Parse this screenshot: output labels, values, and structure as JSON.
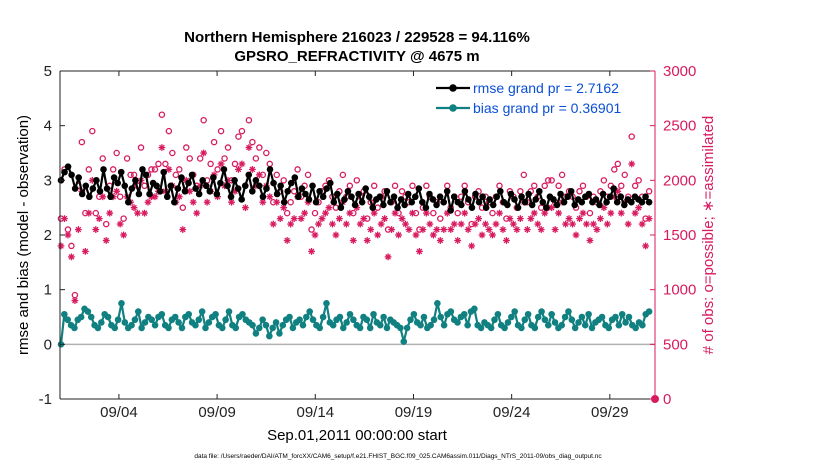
{
  "chart_data": {
    "type": "line",
    "title_line1": "Northern Hemisphere 216023 / 229528 = 94.116%",
    "title_line2": "GPSRO_REFRACTIVITY @ 4675 m",
    "xlabel": "Sep.01,2011 00:00:00 start",
    "ylabel_left": "rmse and bias (model - observation)",
    "ylabel_right": "# of obs: o=possible; ∗=assimilated",
    "footer": "data file: /Users/raeder/DAI/ATM_forcXX/CAM6_setup/f.e21.FHIST_BGC.f09_025.CAM6assim.011/Diags_NTrS_2011-09/obs_diag_output.nc",
    "xlim": [
      0.5,
      30.8
    ],
    "ylim_left": [
      -1,
      5
    ],
    "ylim_right": [
      0,
      3000
    ],
    "x_ticks": [
      3.5,
      8.5,
      13.5,
      18.5,
      23.5,
      28.5
    ],
    "x_tick_labels": [
      "09/04",
      "09/09",
      "09/14",
      "09/19",
      "09/24",
      "09/29"
    ],
    "y_left_ticks": [
      -1,
      0,
      1,
      2,
      3,
      4,
      5
    ],
    "y_right_ticks": [
      0,
      500,
      1000,
      1500,
      2000,
      2500,
      3000
    ],
    "legend": [
      {
        "label": "rmse grand pr = 2.7162",
        "color": "#000000"
      },
      {
        "label": "bias grand pr = 0.36901",
        "color": "#108080"
      }
    ],
    "colors": {
      "rmse": "#000000",
      "bias": "#108080",
      "obs": "#d81b60",
      "zero_line": "#b0b0b0"
    },
    "series": [
      {
        "name": "rmse",
        "axis": "left",
        "color": "#000000",
        "values": [
          3.0,
          3.15,
          3.25,
          3.1,
          2.85,
          3.05,
          2.75,
          2.9,
          2.7,
          2.85,
          3.0,
          2.8,
          3.2,
          2.85,
          2.7,
          3.05,
          2.95,
          3.15,
          2.9,
          2.6,
          2.85,
          3.0,
          2.75,
          3.2,
          3.1,
          2.75,
          2.95,
          2.9,
          2.8,
          3.15,
          2.7,
          2.9,
          2.6,
          2.85,
          3.05,
          2.8,
          2.95,
          3.1,
          2.85,
          2.75,
          3.0,
          2.9,
          2.8,
          3.05,
          2.75,
          2.95,
          3.2,
          2.9,
          2.7,
          3.0,
          2.85,
          2.65,
          2.9,
          3.1,
          2.8,
          3.0,
          2.9,
          2.7,
          2.85,
          3.2,
          2.95,
          2.75,
          2.9,
          2.6,
          2.8,
          2.95,
          3.05,
          2.7,
          2.85,
          2.75,
          2.65,
          2.9,
          2.6,
          2.8,
          2.7,
          2.85,
          2.95,
          2.6,
          2.75,
          2.5,
          2.65,
          2.8,
          2.7,
          2.55,
          2.75,
          2.6,
          2.85,
          2.7,
          2.5,
          2.65,
          2.7,
          2.55,
          2.8,
          2.6,
          2.7,
          2.5,
          2.65,
          2.55,
          2.75,
          2.6,
          2.7,
          2.85,
          2.6,
          2.5,
          2.75,
          2.65,
          2.55,
          2.7,
          2.6,
          2.8,
          2.45,
          2.7,
          2.6,
          2.55,
          2.8,
          2.65,
          2.5,
          2.75,
          2.6,
          2.7,
          2.5,
          2.65,
          2.55,
          2.7,
          2.8,
          2.6,
          2.55,
          2.75,
          2.65,
          2.5,
          2.7,
          2.6,
          2.75,
          2.55,
          2.65,
          2.8,
          2.6,
          2.5,
          2.7,
          2.65,
          2.55,
          2.75,
          2.6,
          2.7,
          2.8,
          2.55,
          2.65,
          2.6,
          2.7,
          2.75,
          2.6,
          2.65,
          2.55,
          2.75,
          2.6,
          2.7,
          2.85,
          2.6,
          2.7,
          2.55,
          2.65,
          2.6,
          2.7,
          2.65,
          2.6,
          2.7,
          2.6
        ]
      },
      {
        "name": "bias",
        "axis": "left",
        "color": "#108080",
        "values": [
          0.0,
          0.55,
          0.45,
          0.35,
          0.3,
          0.45,
          0.5,
          0.65,
          0.6,
          0.5,
          0.35,
          0.3,
          0.4,
          0.55,
          0.5,
          0.35,
          0.3,
          0.45,
          0.75,
          0.4,
          0.3,
          0.35,
          0.45,
          0.6,
          0.3,
          0.4,
          0.5,
          0.45,
          0.35,
          0.5,
          0.55,
          0.35,
          0.3,
          0.45,
          0.5,
          0.4,
          0.3,
          0.5,
          0.55,
          0.4,
          0.35,
          0.45,
          0.6,
          0.3,
          0.4,
          0.5,
          0.55,
          0.35,
          0.3,
          0.45,
          0.6,
          0.35,
          0.3,
          0.5,
          0.55,
          0.45,
          0.4,
          0.35,
          0.2,
          0.3,
          0.45,
          0.35,
          0.15,
          0.3,
          0.4,
          0.2,
          0.35,
          0.45,
          0.5,
          0.3,
          0.4,
          0.45,
          0.35,
          0.5,
          0.6,
          0.45,
          0.35,
          0.3,
          0.5,
          0.75,
          0.4,
          0.35,
          0.45,
          0.5,
          0.3,
          0.4,
          0.55,
          0.45,
          0.35,
          0.3,
          0.5,
          0.45,
          0.3,
          0.55,
          0.4,
          0.35,
          0.5,
          0.3,
          0.45,
          0.4,
          0.35,
          0.3,
          0.05,
          0.3,
          0.45,
          0.55,
          0.4,
          0.35,
          0.5,
          0.3,
          0.35,
          0.45,
          0.75,
          0.5,
          0.35,
          0.55,
          0.6,
          0.45,
          0.4,
          0.5,
          0.55,
          0.35,
          0.6,
          0.65,
          0.35,
          0.3,
          0.4,
          0.35,
          0.3,
          0.45,
          0.55,
          0.35,
          0.3,
          0.4,
          0.5,
          0.6,
          0.35,
          0.3,
          0.45,
          0.55,
          0.35,
          0.3,
          0.5,
          0.6,
          0.45,
          0.35,
          0.55,
          0.4,
          0.3,
          0.35,
          0.5,
          0.6,
          0.45,
          0.3,
          0.4,
          0.5,
          0.35,
          0.55,
          0.3,
          0.4,
          0.45,
          0.5,
          0.35,
          0.3,
          0.45,
          0.5,
          0.35,
          0.55,
          0.4,
          0.5,
          0.35,
          0.3,
          0.4,
          0.35,
          0.55,
          0.6
        ]
      },
      {
        "name": "possible",
        "axis": "right",
        "color": "#d81b60",
        "marker": "circle",
        "values": [
          1650,
          2100,
          1550,
          1400,
          950,
          1950,
          2350,
          1700,
          2100,
          2450,
          1700,
          1850,
          2200,
          1600,
          1950,
          2100,
          2250,
          1850,
          1650,
          2200,
          2050,
          2050,
          1950,
          2300,
          1950,
          2050,
          2100,
          2100,
          2150,
          2600,
          2150,
          2450,
          2250,
          2050,
          2100,
          1750,
          2300,
          2200,
          2050,
          1950,
          2200,
          2550,
          2000,
          2150,
          2350,
          2100,
          2450,
          2200,
          2300,
          2000,
          2150,
          2400,
          2450,
          1950,
          2550,
          2350,
          2200,
          2300,
          2050,
          2250,
          2150,
          1800,
          2050,
          1900,
          2000,
          1700,
          1800,
          1900,
          2100,
          1850,
          1950,
          2050,
          1550,
          1700,
          1800,
          1900,
          1950,
          2000,
          1850,
          1750,
          1900,
          2050,
          1850,
          1950,
          1700,
          2000,
          1850,
          1900,
          1650,
          1800,
          1950,
          1750,
          1850,
          1900,
          1550,
          1800,
          1950,
          1700,
          1900,
          1850,
          1800,
          1950,
          1700,
          1550,
          1750,
          1950,
          1850,
          1700,
          1800,
          1650,
          1800,
          1950,
          1750,
          1850,
          1700,
          1850,
          1950,
          1800,
          1600,
          1850,
          1900,
          1750,
          1850,
          1800,
          1700,
          1850,
          1950,
          1800,
          1650,
          1900,
          1850,
          1750,
          1900,
          2050,
          1800,
          1900,
          1950,
          1850,
          1750,
          1950,
          2000,
          2000,
          1800,
          1950,
          2050,
          1850,
          1900,
          1850,
          1750,
          1900,
          1950,
          1850,
          1700,
          1850,
          1800,
          1900,
          2000,
          1850,
          1950,
          2100,
          2150,
          1950,
          2050,
          1850,
          2400,
          1950,
          2000,
          1850,
          1650,
          1900
        ]
      },
      {
        "name": "assimilated",
        "axis": "right",
        "color": "#d81b60",
        "marker": "asterisk",
        "values": [
          1400,
          1650,
          1500,
          1300,
          900,
          1550,
          1900,
          1350,
          1700,
          2000,
          1550,
          1650,
          1850,
          1450,
          1700,
          1850,
          1900,
          1600,
          1500,
          1850,
          1800,
          1750,
          1700,
          2000,
          1700,
          1800,
          1850,
          1850,
          1900,
          2300,
          1900,
          2100,
          1950,
          1800,
          1850,
          1550,
          2000,
          1900,
          1800,
          1700,
          1950,
          2250,
          1800,
          1900,
          2050,
          1850,
          2150,
          1950,
          2000,
          1800,
          1900,
          2100,
          2150,
          1750,
          2300,
          2100,
          1950,
          2050,
          1800,
          1950,
          1850,
          1600,
          1800,
          1650,
          1750,
          1450,
          1600,
          1650,
          1850,
          1650,
          1700,
          1800,
          1350,
          1500,
          1600,
          1650,
          1700,
          1750,
          1600,
          1500,
          1650,
          1800,
          1600,
          1700,
          1450,
          1750,
          1600,
          1650,
          1450,
          1550,
          1700,
          1500,
          1600,
          1650,
          1300,
          1550,
          1700,
          1500,
          1650,
          1600,
          1550,
          1700,
          1500,
          1350,
          1550,
          1700,
          1600,
          1500,
          1550,
          1450,
          1550,
          1700,
          1550,
          1600,
          1450,
          1600,
          1700,
          1550,
          1400,
          1600,
          1650,
          1500,
          1600,
          1550,
          1500,
          1600,
          1700,
          1550,
          1450,
          1650,
          1600,
          1550,
          1650,
          1800,
          1550,
          1650,
          1700,
          1600,
          1550,
          1700,
          1750,
          1750,
          1550,
          1700,
          1800,
          1600,
          1650,
          1600,
          1500,
          1650,
          1700,
          1600,
          1450,
          1600,
          1550,
          1650,
          1750,
          1600,
          1700,
          1850,
          1900,
          1700,
          1800,
          1600,
          2150,
          1700,
          1750,
          1600,
          1400,
          1650
        ]
      }
    ],
    "end_marker": {
      "x": 30.8,
      "y_right": 0
    }
  }
}
